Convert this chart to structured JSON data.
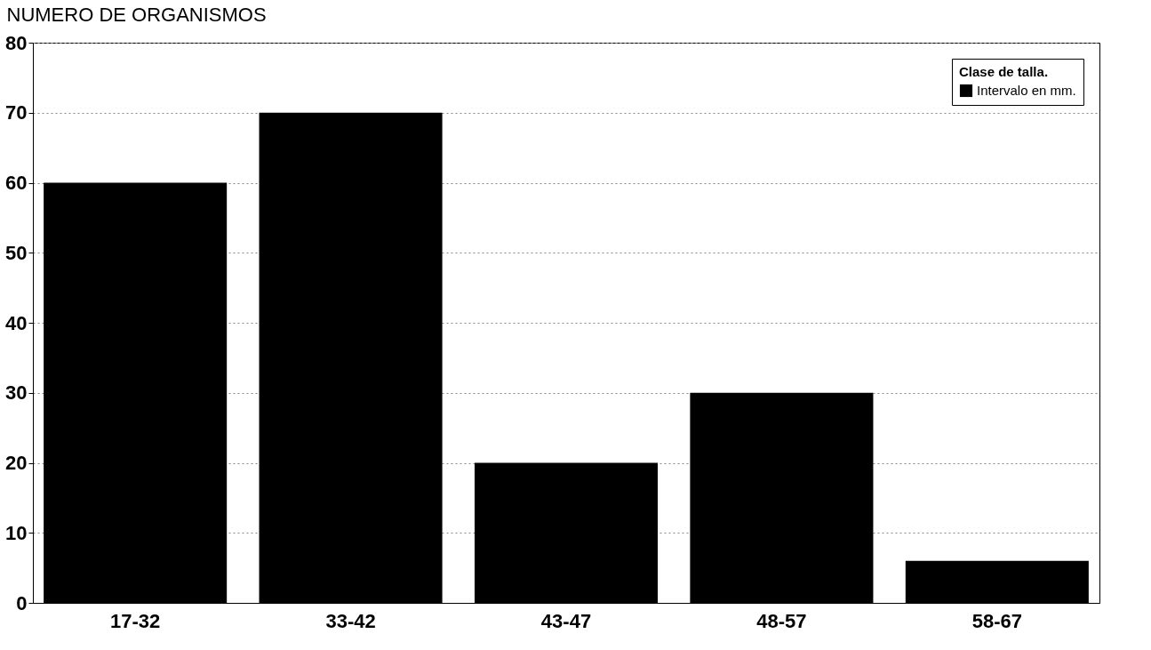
{
  "chart_data": {
    "type": "bar",
    "ylabel": "NUMERO DE ORGANISMOS",
    "legend_title": "Clase de talla.",
    "categories": [
      "17-32",
      "33-42",
      "43-47",
      "48-57",
      "58-67"
    ],
    "series": [
      {
        "name": "Intervalo en mm.",
        "color": "#000000",
        "values": [
          60,
          70,
          20,
          30,
          6
        ]
      }
    ],
    "ylim": [
      0,
      80
    ],
    "yticks": [
      0,
      10,
      20,
      30,
      40,
      50,
      60,
      70,
      80
    ],
    "grid": "y",
    "legend": "top right"
  }
}
